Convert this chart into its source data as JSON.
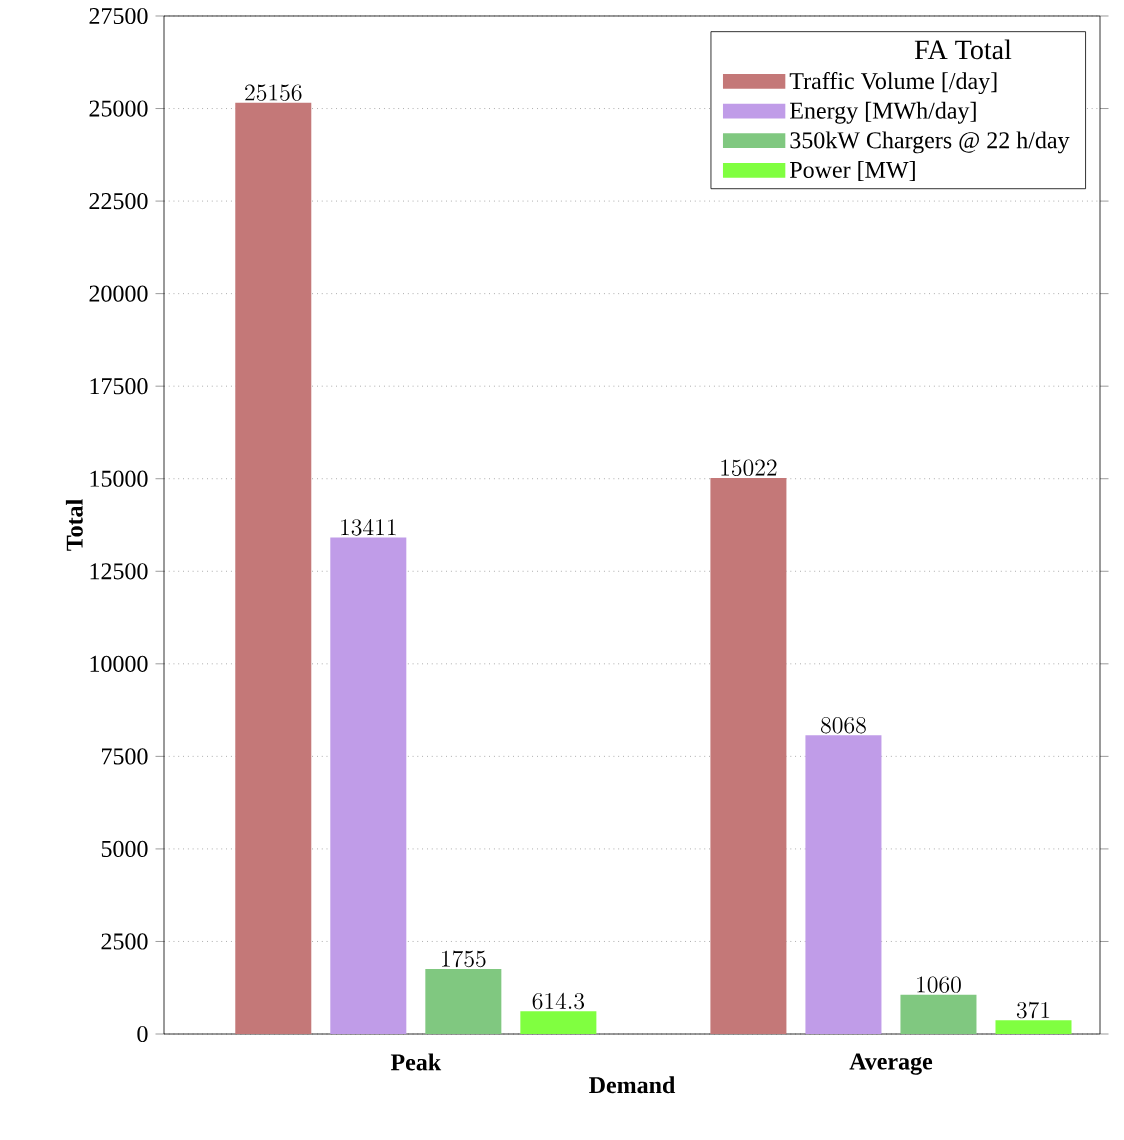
{
  "chart_data": {
    "type": "bar",
    "xlabel": "Demand",
    "ylabel": "Total",
    "legend_title": "FA Total",
    "categories": [
      "Peak",
      "Average"
    ],
    "series": [
      {
        "name": "Traffic Volume [/day]",
        "color": "#c47878",
        "values": [
          25156,
          15022
        ]
      },
      {
        "name": "Energy [MWh/day]",
        "color": "#c09ce8",
        "values": [
          13411,
          8068
        ]
      },
      {
        "name": "350kW Chargers @ 22 h/day",
        "color": "#80c880",
        "values": [
          1755,
          1060
        ]
      },
      {
        "name": "Power [MW]",
        "color": "#80ff40",
        "values": [
          614.3,
          371
        ]
      }
    ],
    "ylim": [
      0,
      27500
    ],
    "yticks": [
      0,
      2500,
      5000,
      7500,
      10000,
      12500,
      15000,
      17500,
      20000,
      22500,
      25000,
      27500
    ],
    "grid": "y",
    "legend": "top right",
    "data_labels": true
  }
}
